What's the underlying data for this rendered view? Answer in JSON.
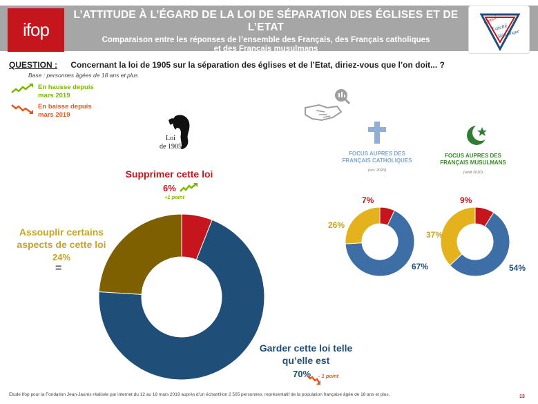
{
  "header": {
    "logo_text": "ifop",
    "title": "L’ATTITUDE À L’ÉGARD DE LA LOI DE SÉPARATION DES ÉGLISES ET DE L’ETAT",
    "subtitle_line1": "Comparaison entre les réponses de l’ensemble des Français, des Français catholiques",
    "subtitle_line2": "et des Français musulmans",
    "comite_logo_text": "Comité Laïcité République"
  },
  "question": {
    "label": "QUESTION :",
    "text": "Concernant la loi de 1905 sur la séparation des églises et de l’Etat, diriez-vous que l’on doit... ?",
    "base": "Base : personnes âgées de 18 ans et plus"
  },
  "legend": {
    "up": "En hausse depuis mars 2019",
    "down": "En baisse depuis mars 2019"
  },
  "portrait_caption": {
    "line1": "Loi",
    "line2": "de 1905"
  },
  "focus": {
    "catholic_title": "FOCUS AUPRES DES FRANÇAIS CATHOLIQUES",
    "catholic_date": "(oct. 2020)",
    "muslim_title": "FOCUS AUPRES DES FRANÇAIS MUSULMANS",
    "muslim_date": "(août 2020)"
  },
  "colors": {
    "garder": "#1f4e79",
    "assouplir": "#7f6000",
    "supprimer": "#c4161c",
    "small_gold": "#e3b21c",
    "small_blue": "#3d6ea5",
    "up": "#7ab800",
    "down": "#e8571e"
  },
  "chart_data": [
    {
      "type": "pie",
      "categories": [
        "Garder cette loi telle qu’elle est",
        "Assouplir certains aspects de cette loi",
        "Supprimer cette loi"
      ],
      "values": [
        70,
        24,
        6
      ],
      "value_labels": [
        "70%",
        "24%",
        "6%"
      ],
      "changes": [
        "- 1 point",
        "=",
        "+1 point"
      ]
    },
    {
      "type": "pie",
      "title": "FOCUS AUPRES DES FRANÇAIS CATHOLIQUES",
      "categories": [
        "Garder cette loi telle qu’elle est",
        "Assouplir certains aspects de cette loi",
        "Supprimer cette loi"
      ],
      "values": [
        67,
        26,
        7
      ],
      "value_labels": [
        "67%",
        "26%",
        "7%"
      ]
    },
    {
      "type": "pie",
      "title": "FOCUS AUPRES DES FRANÇAIS MUSULMANS",
      "categories": [
        "Garder cette loi telle qu’elle est",
        "Assouplir certains aspects de cette loi",
        "Supprimer cette loi"
      ],
      "values": [
        54,
        37,
        9
      ],
      "value_labels": [
        "54%",
        "37%",
        "9%"
      ]
    }
  ],
  "footer": "Etude Ifop pour la Fondation Jean-Jaurès réalisée par internet du 12 au 18 mars 2019 auprès d’un échantillon 2 505 personnes, représentatif de la population française âgée de 18 ans et plus.",
  "page_number": "13"
}
